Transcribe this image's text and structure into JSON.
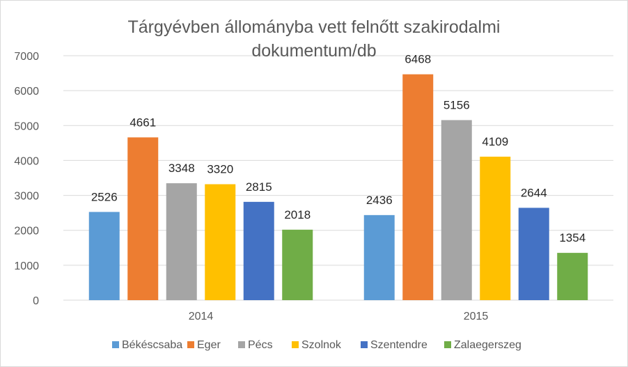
{
  "chart_data": {
    "type": "bar",
    "title_lines": [
      "Tárgyévben állományba vett felnőtt szakirodalmi",
      "dokumentum/db"
    ],
    "categories": [
      "2014",
      "2015"
    ],
    "series": [
      {
        "name": "Békéscsaba",
        "color": "#5b9bd5",
        "values": [
          2526,
          2436
        ]
      },
      {
        "name": "Eger",
        "color": "#ed7d31",
        "values": [
          4661,
          6468
        ]
      },
      {
        "name": "Pécs",
        "color": "#a5a5a5",
        "values": [
          3348,
          5156
        ]
      },
      {
        "name": "Szolnok",
        "color": "#ffc000",
        "values": [
          3320,
          4109
        ]
      },
      {
        "name": "Szentendre",
        "color": "#4472c4",
        "values": [
          2815,
          2644
        ]
      },
      {
        "name": "Zalaegerszeg",
        "color": "#70ad47",
        "values": [
          2018,
          1354
        ]
      }
    ],
    "ylim": [
      0,
      7000
    ],
    "yticks": [
      0,
      1000,
      2000,
      3000,
      4000,
      5000,
      6000,
      7000
    ],
    "grid": true,
    "legend": "bottom",
    "data_labels": true
  }
}
